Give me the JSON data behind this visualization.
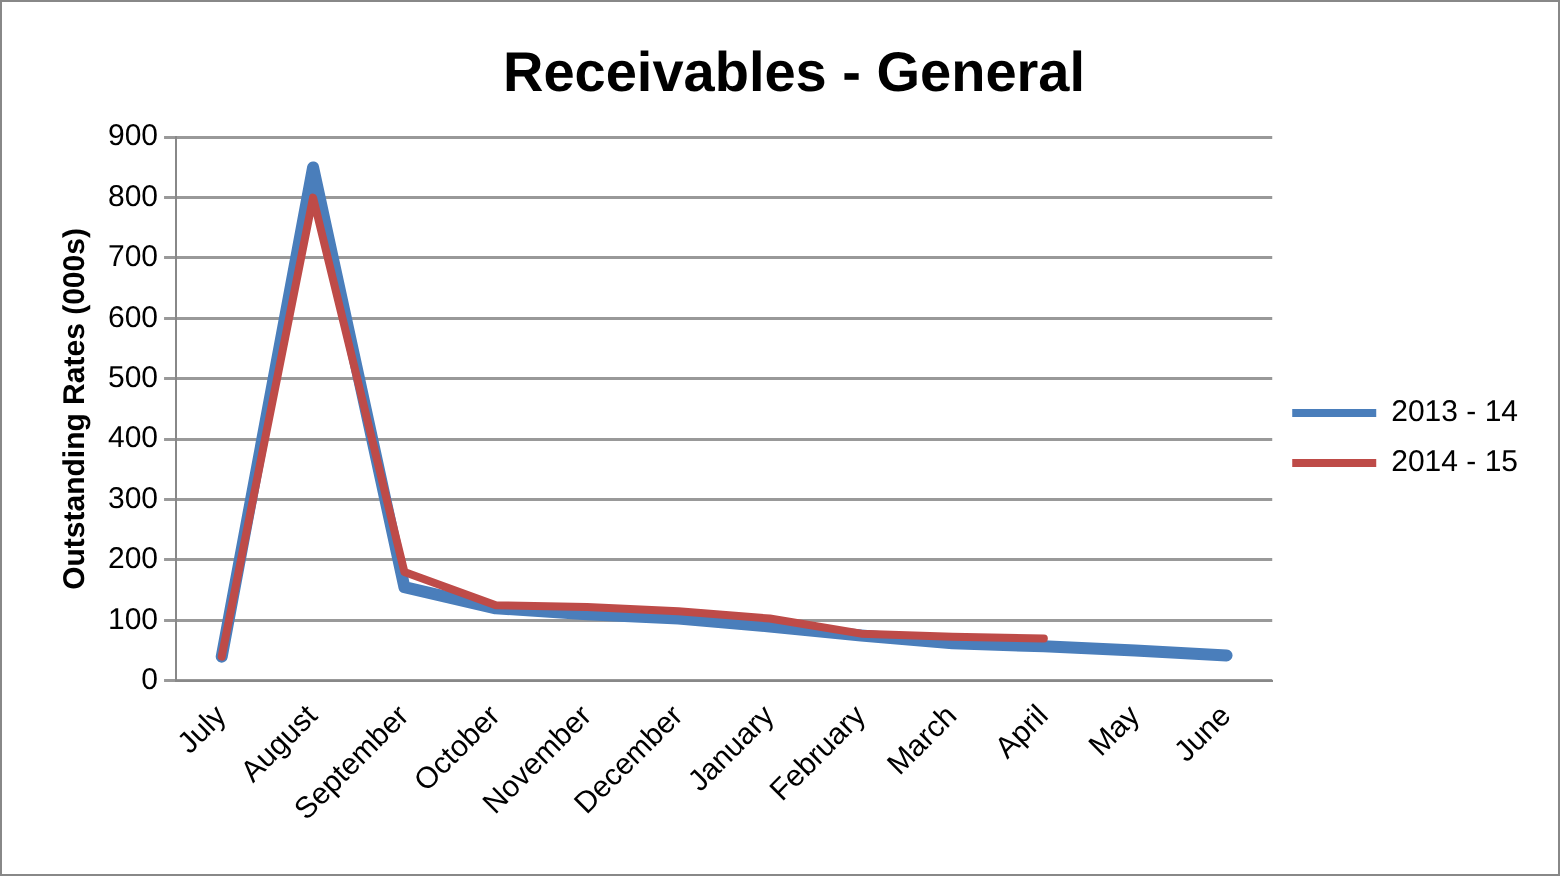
{
  "chart_data": {
    "type": "line",
    "title": "Receivables - General",
    "ylabel": "Outstanding Rates (000s)",
    "categories": [
      "July",
      "August",
      "September",
      "October",
      "November",
      "December",
      "January",
      "February",
      "March",
      "April",
      "May",
      "June"
    ],
    "series": [
      {
        "name": "2013 - 14",
        "color": "#4a7ebb",
        "values": [
          40,
          850,
          155,
          120,
          110,
          103,
          90,
          75,
          62,
          57,
          50,
          42
        ]
      },
      {
        "name": "2014 - 15",
        "color": "#be4b48",
        "values": [
          40,
          800,
          180,
          125,
          122,
          115,
          103,
          78,
          73,
          70,
          null,
          null
        ]
      }
    ],
    "ylim": [
      0,
      900
    ],
    "yticks": [
      0,
      100,
      200,
      300,
      400,
      500,
      600,
      700,
      800,
      900
    ],
    "grid": "y",
    "legend": "right",
    "marker": "none",
    "line_style": "solid"
  }
}
